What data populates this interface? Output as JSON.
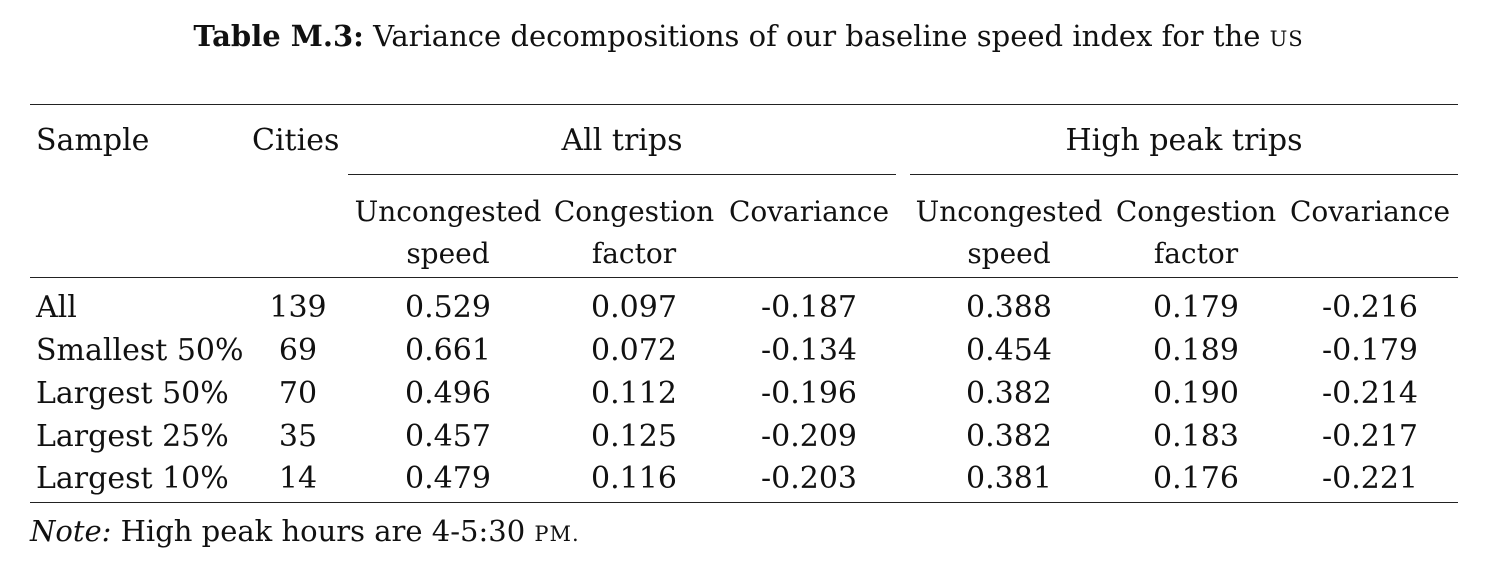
{
  "caption": {
    "label": "Table M.3:",
    "text": "Variance decompositions of our baseline speed index for the",
    "country": "US"
  },
  "headers": {
    "sample": "Sample",
    "cities": "Cities",
    "group_all": "All trips",
    "group_peak": "High peak trips",
    "sub": [
      {
        "line1": "Uncongested",
        "line2": "speed"
      },
      {
        "line1": "Congestion",
        "line2": "factor"
      },
      {
        "line1": "Covariance",
        "line2": ""
      }
    ]
  },
  "rows": [
    {
      "sample": "All",
      "cities": "139",
      "all": [
        "0.529",
        "0.097",
        "-0.187"
      ],
      "peak": [
        "0.388",
        "0.179",
        "-0.216"
      ]
    },
    {
      "sample": "Smallest 50%",
      "cities": "69",
      "all": [
        "0.661",
        "0.072",
        "-0.134"
      ],
      "peak": [
        "0.454",
        "0.189",
        "-0.179"
      ]
    },
    {
      "sample": "Largest 50%",
      "cities": "70",
      "all": [
        "0.496",
        "0.112",
        "-0.196"
      ],
      "peak": [
        "0.382",
        "0.190",
        "-0.214"
      ]
    },
    {
      "sample": "Largest 25%",
      "cities": "35",
      "all": [
        "0.457",
        "0.125",
        "-0.209"
      ],
      "peak": [
        "0.382",
        "0.183",
        "-0.217"
      ]
    },
    {
      "sample": "Largest 10%",
      "cities": "14",
      "all": [
        "0.479",
        "0.116",
        "-0.203"
      ],
      "peak": [
        "0.381",
        "0.176",
        "-0.221"
      ]
    }
  ],
  "note": {
    "label": "Note:",
    "text": "High peak hours are 4-5:30",
    "unit": "PM."
  }
}
